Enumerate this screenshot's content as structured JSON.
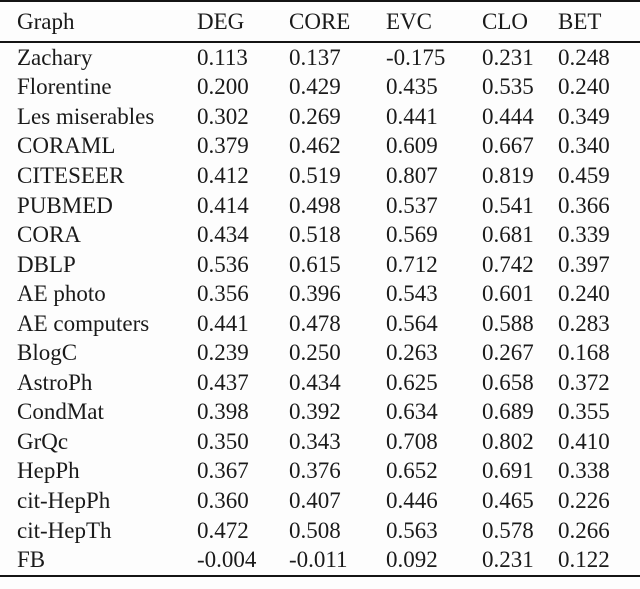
{
  "page": {
    "background": "#fdfdfd",
    "text_color": "#1a1a1a",
    "rule_color": "#141414"
  },
  "chart_data": {
    "type": "table",
    "title": "",
    "columns": [
      "Graph",
      "DEG",
      "CORE",
      "EVC",
      "CLO",
      "BET"
    ],
    "rows": [
      [
        "Zachary",
        "0.113",
        "0.137",
        "-0.175",
        "0.231",
        "0.248"
      ],
      [
        "Florentine",
        "0.200",
        "0.429",
        "0.435",
        "0.535",
        "0.240"
      ],
      [
        "Les miserables",
        "0.302",
        "0.269",
        "0.441",
        "0.444",
        "0.349"
      ],
      [
        "CORAML",
        "0.379",
        "0.462",
        "0.609",
        "0.667",
        "0.340"
      ],
      [
        "CITESEER",
        "0.412",
        "0.519",
        "0.807",
        "0.819",
        "0.459"
      ],
      [
        "PUBMED",
        "0.414",
        "0.498",
        "0.537",
        "0.541",
        "0.366"
      ],
      [
        "CORA",
        "0.434",
        "0.518",
        "0.569",
        "0.681",
        "0.339"
      ],
      [
        "DBLP",
        "0.536",
        "0.615",
        "0.712",
        "0.742",
        "0.397"
      ],
      [
        "AE photo",
        "0.356",
        "0.396",
        "0.543",
        "0.601",
        "0.240"
      ],
      [
        "AE computers",
        "0.441",
        "0.478",
        "0.564",
        "0.588",
        "0.283"
      ],
      [
        "BlogC",
        "0.239",
        "0.250",
        "0.263",
        "0.267",
        "0.168"
      ],
      [
        "AstroPh",
        "0.437",
        "0.434",
        "0.625",
        "0.658",
        "0.372"
      ],
      [
        "CondMat",
        "0.398",
        "0.392",
        "0.634",
        "0.689",
        "0.355"
      ],
      [
        "GrQc",
        "0.350",
        "0.343",
        "0.708",
        "0.802",
        "0.410"
      ],
      [
        "HepPh",
        "0.367",
        "0.376",
        "0.652",
        "0.691",
        "0.338"
      ],
      [
        "cit-HepPh",
        "0.360",
        "0.407",
        "0.446",
        "0.465",
        "0.226"
      ],
      [
        "cit-HepTh",
        "0.472",
        "0.508",
        "0.563",
        "0.578",
        "0.266"
      ],
      [
        "FB",
        "-0.004",
        "-0.011",
        "0.092",
        "0.231",
        "0.122"
      ]
    ]
  }
}
